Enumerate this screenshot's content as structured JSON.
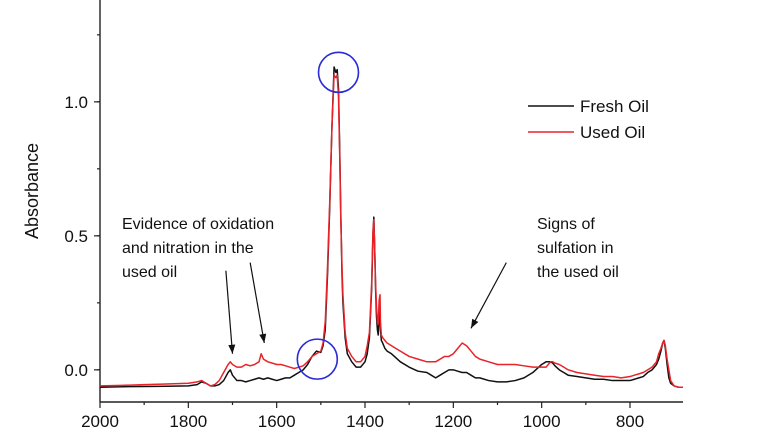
{
  "chart_data": {
    "type": "line",
    "title": "",
    "xlabel": "",
    "ylabel": "Absorbance",
    "xlim": [
      2000,
      680
    ],
    "ylim": [
      -0.12,
      1.38
    ],
    "x_reversed": true,
    "grid": false,
    "legend_position": "top-right",
    "x_ticks": [
      2000,
      1800,
      1600,
      1400,
      1200,
      1000,
      800
    ],
    "y_ticks": [
      0.0,
      0.5,
      1.0
    ],
    "y_tick_labels": [
      "0.0",
      "0.5",
      "1.0"
    ],
    "series": [
      {
        "name": "Fresh Oil",
        "color": "#111111",
        "x": [
          2000,
          1950,
          1900,
          1850,
          1800,
          1780,
          1770,
          1760,
          1750,
          1740,
          1730,
          1720,
          1710,
          1705,
          1700,
          1690,
          1680,
          1670,
          1660,
          1650,
          1640,
          1630,
          1620,
          1610,
          1600,
          1590,
          1580,
          1570,
          1560,
          1550,
          1540,
          1530,
          1520,
          1510,
          1500,
          1495,
          1490,
          1485,
          1480,
          1475,
          1470,
          1466,
          1463,
          1460,
          1457,
          1455,
          1452,
          1450,
          1445,
          1440,
          1430,
          1420,
          1410,
          1400,
          1395,
          1390,
          1385,
          1382,
          1380,
          1378,
          1376,
          1374,
          1372,
          1370,
          1368,
          1366,
          1365,
          1363,
          1360,
          1355,
          1350,
          1340,
          1320,
          1300,
          1280,
          1260,
          1250,
          1240,
          1230,
          1220,
          1210,
          1200,
          1190,
          1180,
          1170,
          1160,
          1150,
          1140,
          1120,
          1100,
          1080,
          1060,
          1040,
          1020,
          1000,
          990,
          980,
          975,
          970,
          960,
          950,
          940,
          920,
          900,
          880,
          860,
          840,
          820,
          800,
          790,
          780,
          770,
          760,
          750,
          740,
          735,
          730,
          726,
          723,
          720,
          716,
          712,
          708,
          700,
          690,
          680
        ],
        "y": [
          -0.065,
          -0.063,
          -0.062,
          -0.061,
          -0.06,
          -0.055,
          -0.045,
          -0.05,
          -0.06,
          -0.06,
          -0.055,
          -0.04,
          -0.01,
          0.0,
          -0.02,
          -0.04,
          -0.04,
          -0.045,
          -0.04,
          -0.035,
          -0.03,
          -0.035,
          -0.03,
          -0.035,
          -0.04,
          -0.035,
          -0.03,
          -0.03,
          -0.02,
          -0.01,
          0.0,
          0.02,
          0.05,
          0.07,
          0.065,
          0.09,
          0.15,
          0.35,
          0.6,
          0.9,
          1.13,
          1.11,
          1.12,
          1.05,
          0.8,
          0.6,
          0.35,
          0.25,
          0.12,
          0.06,
          0.03,
          0.01,
          0.01,
          0.03,
          0.06,
          0.12,
          0.3,
          0.5,
          0.57,
          0.45,
          0.3,
          0.2,
          0.15,
          0.13,
          0.2,
          0.22,
          0.15,
          0.11,
          0.1,
          0.08,
          0.07,
          0.06,
          0.03,
          0.01,
          -0.005,
          -0.01,
          -0.02,
          -0.03,
          -0.02,
          -0.01,
          0.0,
          0.0,
          -0.005,
          -0.01,
          -0.01,
          -0.02,
          -0.03,
          -0.03,
          -0.04,
          -0.045,
          -0.045,
          -0.04,
          -0.03,
          -0.01,
          0.02,
          0.03,
          0.03,
          0.025,
          0.015,
          0.0,
          -0.01,
          -0.02,
          -0.025,
          -0.03,
          -0.035,
          -0.035,
          -0.04,
          -0.04,
          -0.04,
          -0.035,
          -0.03,
          -0.025,
          -0.01,
          0.0,
          0.02,
          0.04,
          0.07,
          0.1,
          0.11,
          0.08,
          0.02,
          -0.03,
          -0.05,
          -0.06,
          -0.065,
          -0.065
        ]
      },
      {
        "name": "Used Oil",
        "color": "#e8232a",
        "x": [
          2000,
          1950,
          1900,
          1850,
          1800,
          1780,
          1770,
          1760,
          1750,
          1740,
          1730,
          1720,
          1710,
          1705,
          1700,
          1690,
          1680,
          1670,
          1660,
          1650,
          1640,
          1635,
          1630,
          1620,
          1610,
          1600,
          1590,
          1580,
          1570,
          1560,
          1550,
          1540,
          1530,
          1520,
          1510,
          1500,
          1495,
          1490,
          1485,
          1480,
          1475,
          1470,
          1466,
          1463,
          1460,
          1457,
          1455,
          1452,
          1450,
          1445,
          1440,
          1430,
          1420,
          1410,
          1400,
          1395,
          1390,
          1385,
          1382,
          1380,
          1378,
          1376,
          1374,
          1372,
          1370,
          1368,
          1366,
          1365,
          1363,
          1360,
          1355,
          1350,
          1340,
          1320,
          1300,
          1280,
          1260,
          1250,
          1240,
          1230,
          1220,
          1210,
          1200,
          1190,
          1180,
          1170,
          1160,
          1150,
          1140,
          1120,
          1100,
          1080,
          1060,
          1040,
          1020,
          1000,
          990,
          980,
          975,
          970,
          960,
          950,
          940,
          920,
          900,
          880,
          860,
          840,
          820,
          800,
          790,
          780,
          770,
          760,
          750,
          740,
          735,
          730,
          726,
          723,
          720,
          716,
          712,
          708,
          700,
          690,
          680
        ],
        "y": [
          -0.06,
          -0.058,
          -0.055,
          -0.053,
          -0.05,
          -0.045,
          -0.04,
          -0.05,
          -0.06,
          -0.055,
          -0.04,
          -0.01,
          0.02,
          0.03,
          0.02,
          0.01,
          0.01,
          0.02,
          0.015,
          0.02,
          0.03,
          0.06,
          0.04,
          0.03,
          0.025,
          0.02,
          0.02,
          0.015,
          0.01,
          0.005,
          0.01,
          0.015,
          0.03,
          0.05,
          0.06,
          0.07,
          0.1,
          0.18,
          0.38,
          0.62,
          0.9,
          1.1,
          1.09,
          1.1,
          1.02,
          0.78,
          0.58,
          0.38,
          0.28,
          0.14,
          0.08,
          0.05,
          0.03,
          0.03,
          0.05,
          0.09,
          0.14,
          0.32,
          0.52,
          0.56,
          0.45,
          0.32,
          0.24,
          0.18,
          0.17,
          0.26,
          0.28,
          0.18,
          0.13,
          0.12,
          0.11,
          0.1,
          0.09,
          0.07,
          0.05,
          0.04,
          0.03,
          0.03,
          0.03,
          0.04,
          0.05,
          0.05,
          0.06,
          0.08,
          0.1,
          0.09,
          0.07,
          0.05,
          0.04,
          0.03,
          0.02,
          0.02,
          0.02,
          0.015,
          0.01,
          0.01,
          0.01,
          0.03,
          0.03,
          0.025,
          0.02,
          0.01,
          0.0,
          -0.01,
          -0.015,
          -0.02,
          -0.025,
          -0.025,
          -0.03,
          -0.025,
          -0.02,
          -0.015,
          -0.01,
          0.0,
          0.01,
          0.03,
          0.06,
          0.08,
          0.1,
          0.11,
          0.09,
          0.04,
          0.0,
          -0.04,
          -0.06,
          -0.065,
          -0.065
        ]
      }
    ],
    "highlights": [
      {
        "x": 1460,
        "y": 1.11
      },
      {
        "x": 1508,
        "y": 0.04
      }
    ],
    "annotations": [
      {
        "lines": [
          "Evidence of oxidation",
          "and nitration in the",
          "used oil"
        ],
        "arrows": [
          {
            "from": [
              1715,
              0.37
            ],
            "to": [
              1700,
              0.06
            ]
          },
          {
            "from": [
              1660,
              0.4
            ],
            "to": [
              1628,
              0.1
            ]
          }
        ]
      },
      {
        "lines": [
          "Signs of",
          "sulfation in",
          "the used oil"
        ],
        "arrows": [
          {
            "from": [
              1080,
              0.4
            ],
            "to": [
              1160,
              0.155
            ]
          }
        ]
      }
    ]
  }
}
